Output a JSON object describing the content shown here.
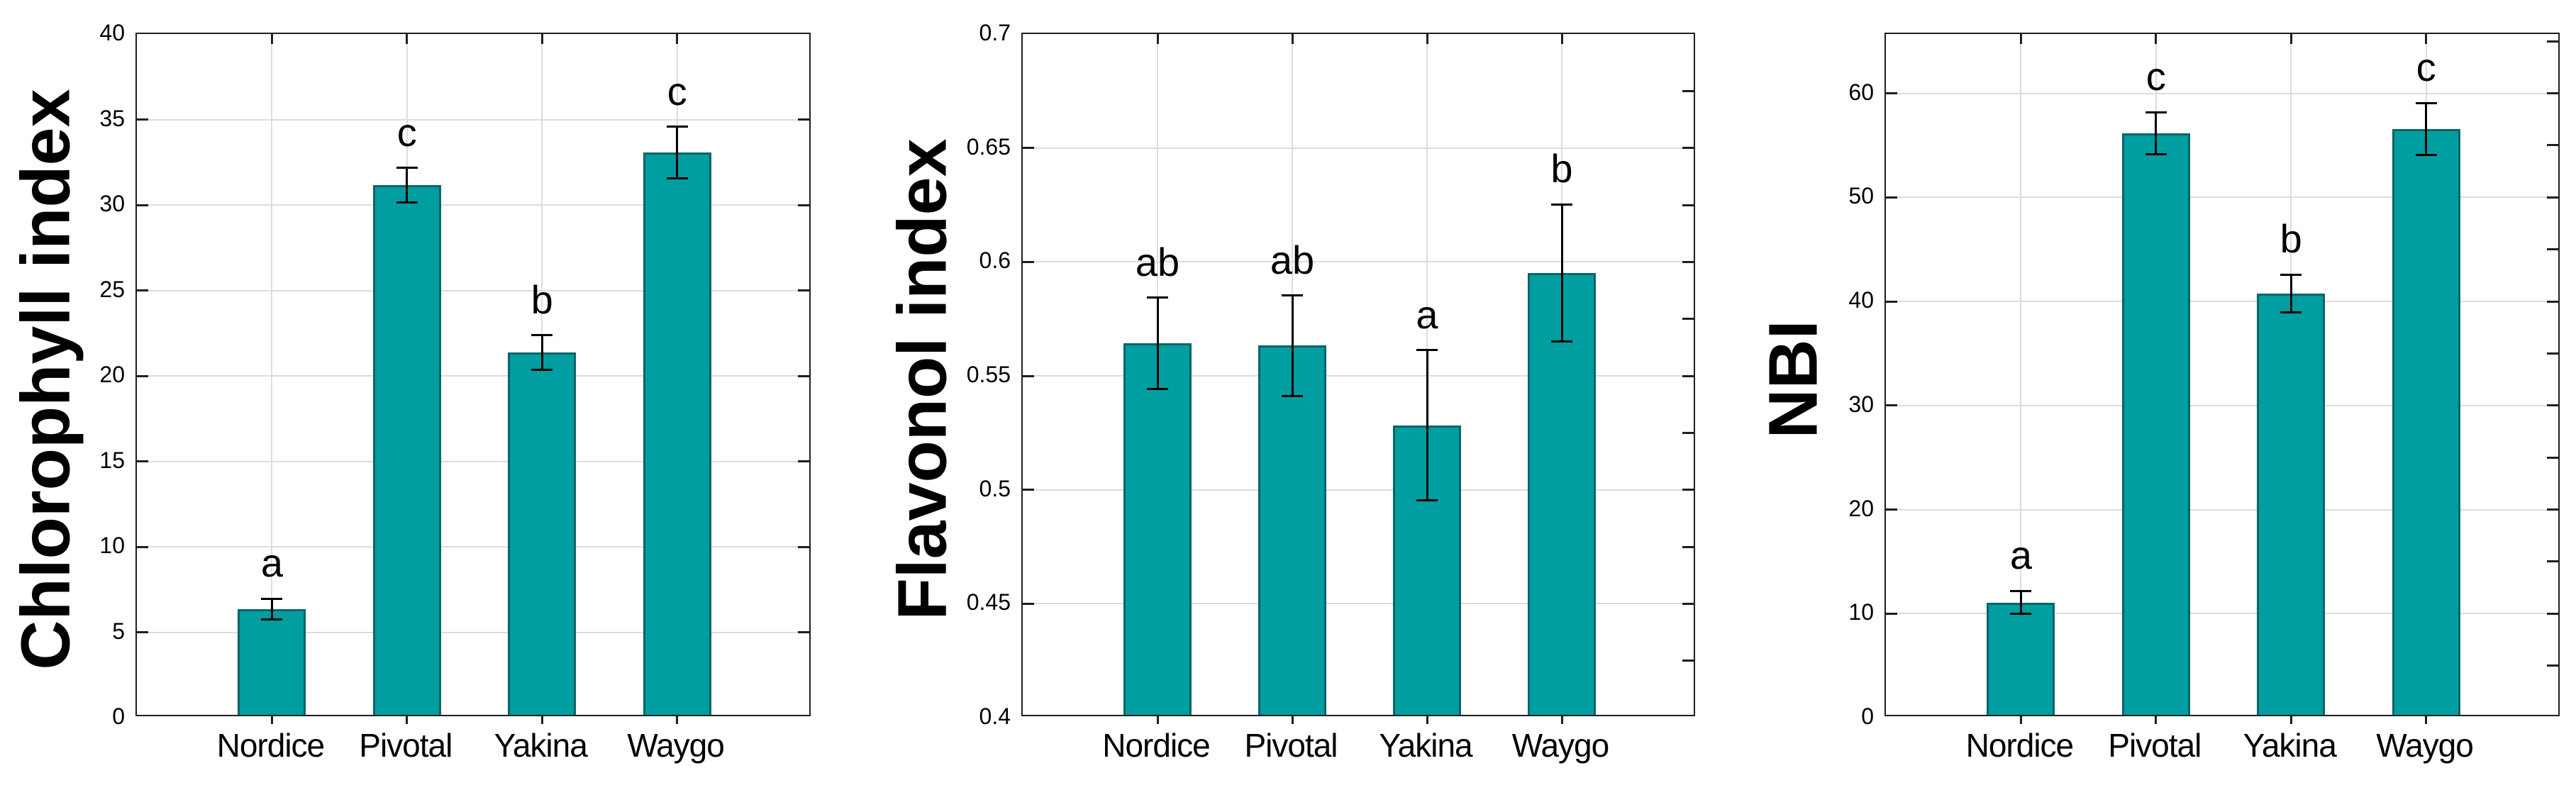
{
  "figure": {
    "background": "#ffffff",
    "panel_count": 3
  },
  "style": {
    "bar_fill": "#009ea0",
    "bar_border": "#0a656b",
    "grid_color": "#dcdcdc",
    "axis_color": "#1f1f1f",
    "error_bar_color": "#000000",
    "text_color": "#000000"
  },
  "chart_data": [
    {
      "type": "bar",
      "ylabel": "Chlorophyll index",
      "xlabel": "",
      "categories": [
        "Nordice",
        "Pivotal",
        "Yakina",
        "Waygo"
      ],
      "values": [
        6.2,
        31.0,
        21.2,
        32.9
      ],
      "errors": [
        0.6,
        1.0,
        1.0,
        1.5
      ],
      "significance_letters": [
        "a",
        "c",
        "b",
        "c"
      ],
      "ylim": [
        0,
        40
      ],
      "yticks": [
        0,
        5,
        10,
        15,
        20,
        25,
        30,
        35,
        40
      ],
      "ytick_labels": [
        "0",
        "5",
        "10",
        "15",
        "20",
        "25",
        "30",
        "35",
        "40"
      ],
      "right_tick_step": 5,
      "grid": true,
      "legend": null
    },
    {
      "type": "bar",
      "ylabel": "Flavonol index",
      "xlabel": "",
      "categories": [
        "Nordice",
        "Pivotal",
        "Yakina",
        "Waygo"
      ],
      "values": [
        0.563,
        0.562,
        0.527,
        0.594
      ],
      "errors": [
        0.02,
        0.022,
        0.033,
        0.03
      ],
      "significance_letters": [
        "ab",
        "ab",
        "a",
        "b"
      ],
      "ylim": [
        0.4,
        0.7
      ],
      "yticks": [
        0.4,
        0.45,
        0.5,
        0.55,
        0.6,
        0.65,
        0.7
      ],
      "ytick_labels": [
        "0.4",
        "0.45",
        "0.5",
        "0.55",
        "0.6",
        "0.65",
        "0.7"
      ],
      "right_tick_step": 0.025,
      "grid": true,
      "legend": null
    },
    {
      "type": "bar",
      "ylabel": "NBI",
      "xlabel": "",
      "categories": [
        "Nordice",
        "Pivotal",
        "Yakina",
        "Waygo"
      ],
      "values": [
        10.8,
        55.9,
        40.5,
        56.3
      ],
      "errors": [
        1.1,
        2.0,
        1.8,
        2.5
      ],
      "significance_letters": [
        "a",
        "c",
        "b",
        "c"
      ],
      "ylim": [
        0,
        65.7
      ],
      "yticks": [
        0,
        10,
        20,
        30,
        40,
        50,
        60
      ],
      "ytick_labels": [
        "0",
        "10",
        "20",
        "30",
        "40",
        "50",
        "60"
      ],
      "right_tick_step": 5,
      "grid": true,
      "legend": null
    }
  ]
}
